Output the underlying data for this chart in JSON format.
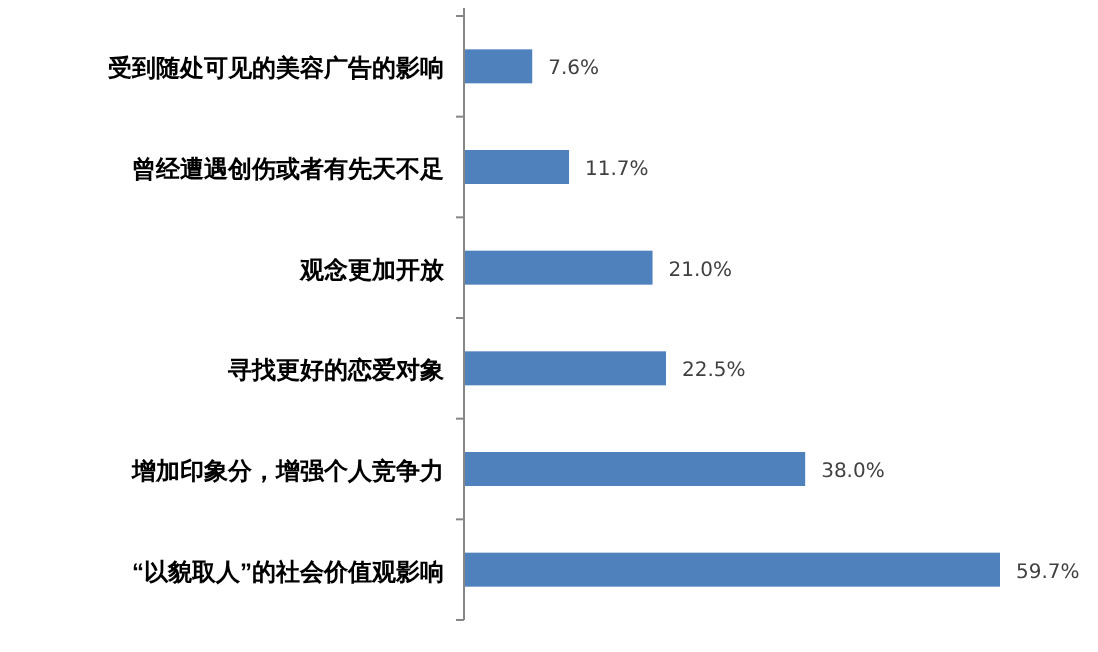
{
  "chart_data": {
    "type": "bar",
    "orientation": "horizontal",
    "categories": [
      "受到随处可见的美容广告的影响",
      "曾经遭遇创伤或者有先天不足",
      "观念更加开放",
      "寻找更好的恋爱对象",
      "增加印象分，增强个人竞争力",
      "“以貌取人”的社会价值观影响"
    ],
    "values": [
      7.6,
      11.7,
      21.0,
      22.5,
      38.0,
      59.7
    ],
    "value_labels": [
      "7.6%",
      "11.7%",
      "21.0%",
      "22.5%",
      "38.0%",
      "59.7%"
    ],
    "color": "#4f81bd"
  }
}
